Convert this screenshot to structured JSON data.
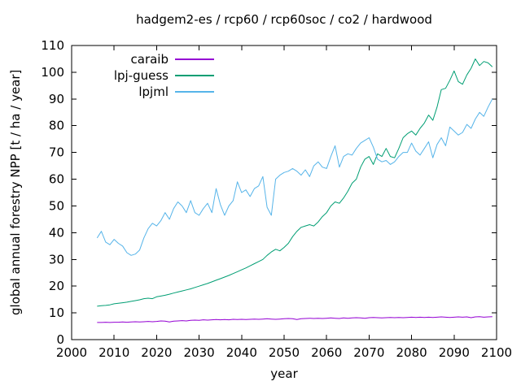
{
  "chart_data": {
    "type": "line",
    "title": "hadgem2-es / rcp60 / rcp60soc / co2 / hardwood",
    "xlabel": "year",
    "ylabel": "global annual forestry NPP [t / ha / year]",
    "xlim": [
      2000,
      2100
    ],
    "ylim": [
      0,
      110
    ],
    "x_ticks": [
      2000,
      2010,
      2020,
      2030,
      2040,
      2050,
      2060,
      2070,
      2080,
      2090,
      2100
    ],
    "y_ticks": [
      0,
      10,
      20,
      30,
      40,
      50,
      60,
      70,
      80,
      90,
      100,
      110
    ],
    "grid": false,
    "legend_position": "top-left-inside",
    "background": "#ffffff",
    "axis_color": "#000000",
    "x_start": 2006,
    "x_end": 2099,
    "x_step": 1,
    "series": [
      {
        "name": "caraib",
        "color": "#9400d3",
        "values": [
          6.4,
          6.4,
          6.5,
          6.4,
          6.5,
          6.5,
          6.6,
          6.5,
          6.6,
          6.7,
          6.6,
          6.7,
          6.8,
          6.7,
          6.8,
          7.0,
          6.9,
          6.6,
          6.9,
          7.0,
          7.1,
          7.0,
          7.2,
          7.3,
          7.2,
          7.4,
          7.3,
          7.4,
          7.5,
          7.4,
          7.5,
          7.4,
          7.6,
          7.5,
          7.6,
          7.5,
          7.6,
          7.7,
          7.6,
          7.7,
          7.8,
          7.7,
          7.6,
          7.7,
          7.8,
          7.9,
          7.8,
          7.5,
          7.8,
          7.9,
          8.0,
          7.9,
          8.0,
          7.9,
          8.0,
          8.1,
          8.0,
          7.9,
          8.1,
          8.0,
          8.1,
          8.2,
          8.1,
          8.0,
          8.2,
          8.3,
          8.2,
          8.1,
          8.2,
          8.3,
          8.2,
          8.3,
          8.2,
          8.3,
          8.4,
          8.3,
          8.4,
          8.3,
          8.4,
          8.3,
          8.4,
          8.5,
          8.4,
          8.3,
          8.4,
          8.5,
          8.4,
          8.5,
          8.2,
          8.5,
          8.6,
          8.4,
          8.5,
          8.6
        ]
      },
      {
        "name": "lpj-guess",
        "color": "#009e73",
        "values": [
          12.5,
          12.7,
          12.8,
          13.0,
          13.4,
          13.6,
          13.8,
          14.0,
          14.3,
          14.6,
          14.9,
          15.3,
          15.5,
          15.3,
          16.0,
          16.3,
          16.6,
          17.0,
          17.4,
          17.8,
          18.2,
          18.6,
          19.0,
          19.5,
          20.0,
          20.5,
          21.0,
          21.6,
          22.2,
          22.8,
          23.4,
          24.0,
          24.7,
          25.4,
          26.1,
          26.8,
          27.6,
          28.4,
          29.2,
          30.0,
          31.5,
          32.8,
          33.8,
          33.2,
          34.5,
          36.0,
          38.5,
          40.5,
          42.0,
          42.5,
          43.0,
          42.5,
          44.0,
          46.0,
          47.5,
          50.0,
          51.5,
          51.0,
          53.0,
          55.5,
          58.5,
          60.0,
          64.5,
          67.5,
          68.5,
          65.5,
          69.5,
          68.5,
          71.5,
          68.5,
          68.0,
          71.5,
          75.5,
          77.0,
          78.0,
          76.5,
          79.0,
          81.0,
          84.0,
          82.0,
          87.0,
          93.5,
          94.0,
          97.0,
          100.5,
          96.5,
          95.5,
          99.0,
          101.5,
          105.0,
          102.5,
          104.0,
          103.5,
          102.0
        ]
      },
      {
        "name": "lpjml",
        "color": "#56b4e9",
        "values": [
          38.0,
          40.5,
          36.5,
          35.5,
          37.5,
          36.0,
          35.0,
          32.5,
          31.5,
          32.0,
          33.5,
          38.0,
          41.5,
          43.5,
          42.5,
          44.5,
          47.5,
          45.0,
          49.0,
          51.5,
          50.0,
          47.5,
          52.0,
          47.5,
          46.5,
          49.0,
          51.0,
          47.5,
          56.5,
          50.5,
          46.5,
          50.0,
          52.0,
          59.0,
          55.0,
          56.0,
          53.5,
          56.5,
          57.5,
          61.0,
          49.5,
          46.5,
          60.0,
          61.5,
          62.5,
          63.0,
          64.0,
          63.0,
          61.5,
          63.5,
          61.0,
          65.0,
          66.5,
          64.5,
          64.0,
          68.5,
          72.5,
          64.5,
          68.5,
          69.5,
          69.0,
          71.5,
          73.5,
          74.5,
          75.5,
          72.0,
          67.5,
          66.5,
          67.0,
          65.5,
          66.5,
          68.5,
          70.0,
          70.0,
          73.5,
          70.5,
          69.0,
          71.5,
          74.0,
          68.0,
          73.0,
          75.5,
          72.5,
          79.5,
          78.0,
          76.5,
          77.5,
          80.5,
          79.0,
          82.5,
          85.0,
          83.5,
          87.0,
          90.0
        ]
      }
    ]
  }
}
